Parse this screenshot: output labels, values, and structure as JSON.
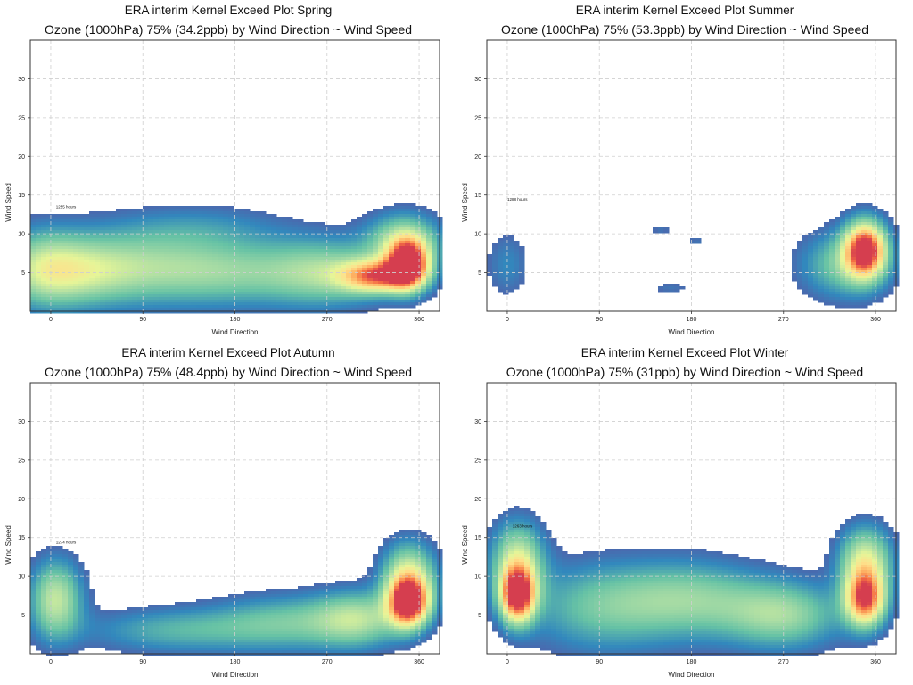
{
  "chart_data": [
    {
      "type": "heatmap",
      "title": "ERA interim Kernel Exceed Plot Spring",
      "subtitle": "Ozone (1000hPa) 75% (34.2ppb) by Wind Direction ~ Wind Speed",
      "xlabel": "Wind Direction",
      "ylabel": "Wind Speed",
      "xlim": [
        -20,
        380
      ],
      "ylim": [
        0,
        35
      ],
      "xticks": [
        0,
        90,
        180,
        270,
        360
      ],
      "yticks": [
        5,
        10,
        15,
        20,
        25,
        30
      ],
      "grid": true,
      "annotation": "1255 hours",
      "blobs": [
        {
          "x": -10,
          "y": 5.5,
          "sx": 30,
          "sy": 3.5,
          "v": 0.35
        },
        {
          "x": 30,
          "y": 5,
          "sx": 40,
          "sy": 3,
          "v": 0.3
        },
        {
          "x": 90,
          "y": 6,
          "sx": 60,
          "sy": 3.5,
          "v": 0.3
        },
        {
          "x": 180,
          "y": 5,
          "sx": 60,
          "sy": 3,
          "v": 0.3
        },
        {
          "x": 270,
          "y": 5,
          "sx": 40,
          "sy": 3,
          "v": 0.35
        },
        {
          "x": 320,
          "y": 4.5,
          "sx": 25,
          "sy": 1.5,
          "v": 0.75
        },
        {
          "x": 350,
          "y": 6,
          "sx": 14,
          "sy": 2.2,
          "v": 1.0
        },
        {
          "x": 345,
          "y": 9,
          "sx": 25,
          "sy": 2.5,
          "v": 0.45
        },
        {
          "x": 150,
          "y": 11,
          "sx": 60,
          "sy": 2,
          "v": 0.12
        }
      ]
    },
    {
      "type": "heatmap",
      "title": "ERA interim Kernel Exceed Plot Summer",
      "subtitle": "Ozone (1000hPa) 75% (53.3ppb) by Wind Direction ~ Wind Speed",
      "xlabel": "Wind Direction",
      "ylabel": "Wind Speed",
      "xlim": [
        -20,
        380
      ],
      "ylim": [
        0,
        35
      ],
      "xticks": [
        0,
        90,
        180,
        270,
        360
      ],
      "yticks": [
        5,
        10,
        15,
        20,
        25,
        30
      ],
      "grid": true,
      "annotation": "1288 hours",
      "blobs": [
        {
          "x": 0,
          "y": 6,
          "sx": 15,
          "sy": 3,
          "v": 0.15
        },
        {
          "x": 350,
          "y": 8,
          "sx": 14,
          "sy": 2.5,
          "v": 1.0
        },
        {
          "x": 330,
          "y": 6,
          "sx": 30,
          "sy": 3,
          "v": 0.35
        },
        {
          "x": 150,
          "y": 10.5,
          "sx": 8,
          "sy": 0.5,
          "v": 0.1
        },
        {
          "x": 185,
          "y": 9,
          "sx": 8,
          "sy": 0.5,
          "v": 0.1
        },
        {
          "x": 160,
          "y": 3,
          "sx": 15,
          "sy": 0.6,
          "v": 0.1
        }
      ]
    },
    {
      "type": "heatmap",
      "title": "ERA interim Kernel Exceed Plot Autumn",
      "subtitle": "Ozone (1000hPa) 75% (48.4ppb) by Wind Direction ~ Wind Speed",
      "xlabel": "Wind Direction",
      "ylabel": "Wind Speed",
      "xlim": [
        -20,
        380
      ],
      "ylim": [
        0,
        35
      ],
      "xticks": [
        0,
        90,
        180,
        270,
        360
      ],
      "yticks": [
        5,
        10,
        15,
        20,
        25,
        30
      ],
      "grid": true,
      "annotation": "1274 hours",
      "blobs": [
        {
          "x": 5,
          "y": 7,
          "sx": 18,
          "sy": 3.5,
          "v": 0.5
        },
        {
          "x": 120,
          "y": 3,
          "sx": 60,
          "sy": 2,
          "v": 0.25
        },
        {
          "x": 230,
          "y": 4,
          "sx": 50,
          "sy": 2.5,
          "v": 0.3
        },
        {
          "x": 300,
          "y": 4.5,
          "sx": 30,
          "sy": 2.5,
          "v": 0.4
        },
        {
          "x": 350,
          "y": 6.5,
          "sx": 14,
          "sy": 2.2,
          "v": 1.0
        },
        {
          "x": 350,
          "y": 10,
          "sx": 18,
          "sy": 3,
          "v": 0.55
        }
      ]
    },
    {
      "type": "heatmap",
      "title": "ERA interim Kernel Exceed Plot Winter",
      "subtitle": "Ozone (1000hPa) 75% (31ppb) by Wind Direction ~ Wind Speed",
      "xlabel": "Wind Direction",
      "ylabel": "Wind Speed",
      "xlim": [
        -20,
        380
      ],
      "ylim": [
        0,
        35
      ],
      "xticks": [
        0,
        90,
        180,
        270,
        360
      ],
      "yticks": [
        5,
        10,
        15,
        20,
        25,
        30
      ],
      "grid": true,
      "annotation": "1263 hours",
      "blobs": [
        {
          "x": 10,
          "y": 7.5,
          "sx": 12,
          "sy": 2.5,
          "v": 1.0
        },
        {
          "x": 10,
          "y": 12,
          "sx": 18,
          "sy": 3.5,
          "v": 0.5
        },
        {
          "x": 90,
          "y": 6,
          "sx": 50,
          "sy": 4,
          "v": 0.3
        },
        {
          "x": 180,
          "y": 7,
          "sx": 50,
          "sy": 3.5,
          "v": 0.35
        },
        {
          "x": 270,
          "y": 5,
          "sx": 40,
          "sy": 3,
          "v": 0.4
        },
        {
          "x": 350,
          "y": 7,
          "sx": 14,
          "sy": 2.5,
          "v": 0.9
        },
        {
          "x": 350,
          "y": 12,
          "sx": 18,
          "sy": 3,
          "v": 0.55
        }
      ]
    }
  ]
}
